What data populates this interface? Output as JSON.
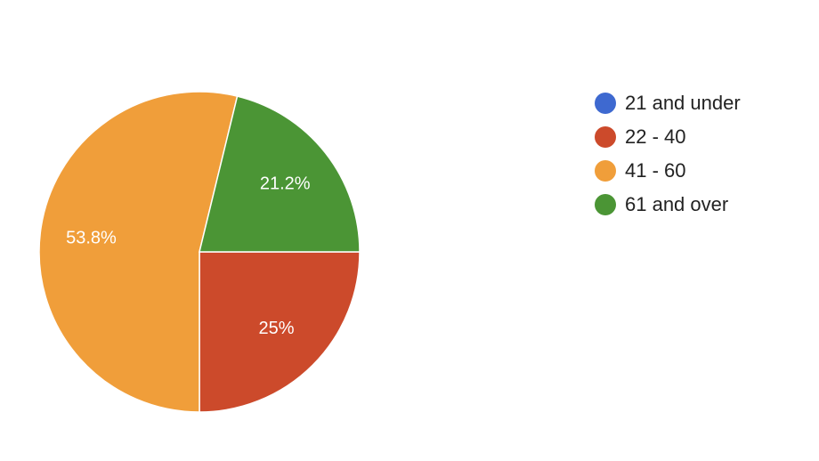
{
  "chart_data": {
    "type": "pie",
    "categories": [
      "21 and under",
      "22 - 40",
      "41 - 60",
      "61 and over"
    ],
    "values": [
      0,
      25,
      53.8,
      21.2
    ],
    "value_labels": [
      null,
      "25%",
      "53.8%",
      "21.2%"
    ],
    "colors": [
      "#3e69d0",
      "#cc4a2b",
      "#f09e3a",
      "#4b9535"
    ],
    "legend": "right"
  }
}
